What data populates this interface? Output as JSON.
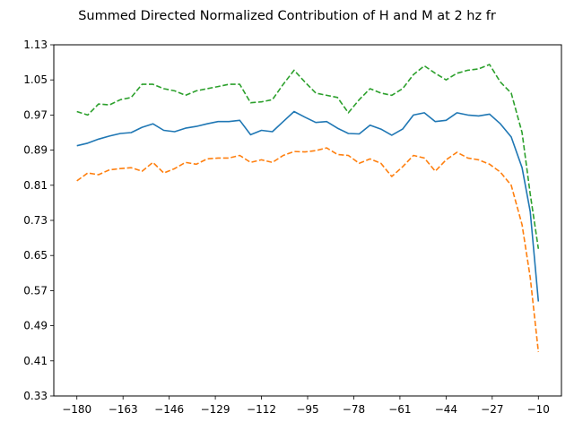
{
  "chart_data": {
    "type": "line",
    "title": "Summed Directed Normalized Contribution of H and M at 2 hz fr",
    "xlabel": "",
    "ylabel": "",
    "xlim": [
      -188.5,
      -1.5
    ],
    "ylim": [
      0.33,
      1.13
    ],
    "xticks": [
      -180,
      -163,
      -146,
      -129,
      -112,
      -95,
      -78,
      -61,
      -44,
      -27,
      -10
    ],
    "yticks": [
      0.33,
      0.41,
      0.49,
      0.57,
      0.65,
      0.73,
      0.81,
      0.89,
      0.97,
      1.05,
      1.13
    ],
    "grid": false,
    "legend": "none",
    "x": [
      -180,
      -176,
      -172,
      -168,
      -164,
      -160,
      -156,
      -152,
      -148,
      -144,
      -140,
      -136,
      -132,
      -128,
      -124,
      -120,
      -116,
      -112,
      -108,
      -104,
      -100,
      -96,
      -92,
      -88,
      -84,
      -80,
      -76,
      -72,
      -68,
      -64,
      -60,
      -56,
      -52,
      -48,
      -44,
      -40,
      -36,
      -32,
      -28,
      -24,
      -20,
      -16,
      -13,
      -10
    ],
    "series": [
      {
        "color": "#1f77b4",
        "style": "solid",
        "values": [
          0.9,
          0.906,
          0.915,
          0.922,
          0.928,
          0.93,
          0.942,
          0.95,
          0.935,
          0.932,
          0.94,
          0.944,
          0.95,
          0.955,
          0.955,
          0.958,
          0.925,
          0.935,
          0.932,
          0.955,
          0.978,
          0.965,
          0.953,
          0.955,
          0.94,
          0.928,
          0.927,
          0.947,
          0.938,
          0.924,
          0.938,
          0.97,
          0.975,
          0.955,
          0.958,
          0.975,
          0.97,
          0.968,
          0.972,
          0.95,
          0.92,
          0.85,
          0.75,
          0.545
        ]
      },
      {
        "color": "#ff7f0e",
        "style": "dashed",
        "values": [
          0.82,
          0.838,
          0.834,
          0.845,
          0.848,
          0.85,
          0.842,
          0.862,
          0.838,
          0.848,
          0.862,
          0.858,
          0.87,
          0.872,
          0.872,
          0.878,
          0.862,
          0.868,
          0.862,
          0.878,
          0.887,
          0.886,
          0.889,
          0.895,
          0.88,
          0.878,
          0.86,
          0.87,
          0.86,
          0.83,
          0.852,
          0.878,
          0.872,
          0.842,
          0.868,
          0.885,
          0.872,
          0.868,
          0.858,
          0.84,
          0.81,
          0.72,
          0.6,
          0.43
        ]
      },
      {
        "color": "#2ca02c",
        "style": "dashed",
        "values": [
          0.978,
          0.97,
          0.995,
          0.993,
          1.005,
          1.01,
          1.04,
          1.04,
          1.03,
          1.025,
          1.015,
          1.025,
          1.03,
          1.035,
          1.04,
          1.04,
          0.998,
          1.0,
          1.005,
          1.04,
          1.072,
          1.045,
          1.02,
          1.015,
          1.01,
          0.975,
          1.005,
          1.03,
          1.02,
          1.015,
          1.03,
          1.062,
          1.082,
          1.065,
          1.05,
          1.065,
          1.072,
          1.075,
          1.085,
          1.045,
          1.02,
          0.93,
          0.79,
          0.665
        ]
      }
    ]
  }
}
